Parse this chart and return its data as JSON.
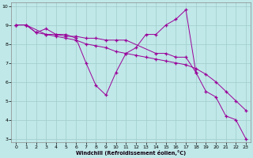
{
  "xlabel": "Windchill (Refroidissement éolien,°C)",
  "bg_color": "#c0e8e8",
  "line_color": "#990099",
  "grid_color": "#a0cccc",
  "xlim": [
    -0.5,
    23.5
  ],
  "ylim": [
    2.8,
    10.2
  ],
  "xticks": [
    0,
    1,
    2,
    3,
    4,
    5,
    6,
    7,
    8,
    9,
    10,
    11,
    12,
    13,
    14,
    15,
    16,
    17,
    18,
    19,
    20,
    21,
    22,
    23
  ],
  "yticks": [
    3,
    4,
    5,
    6,
    7,
    8,
    9,
    10
  ],
  "line1_x": [
    0,
    1,
    2,
    3,
    4,
    5,
    6,
    7,
    8,
    9,
    10,
    11,
    12,
    13,
    14,
    15,
    16,
    17,
    18,
    19,
    20,
    21,
    22,
    23
  ],
  "line1_y": [
    9.0,
    9.0,
    8.6,
    8.5,
    8.4,
    8.3,
    8.2,
    8.0,
    7.9,
    7.8,
    7.6,
    7.5,
    7.4,
    7.3,
    7.2,
    7.1,
    7.0,
    6.9,
    6.7,
    6.4,
    6.0,
    5.5,
    5.0,
    4.5
  ],
  "line2_x": [
    0,
    1,
    2,
    3,
    4,
    5,
    6,
    7,
    8,
    9,
    10,
    11,
    12,
    13,
    14,
    15,
    16,
    17,
    18,
    19,
    20,
    21,
    22,
    23
  ],
  "line2_y": [
    9.0,
    9.0,
    8.6,
    8.8,
    8.5,
    8.5,
    8.3,
    7.0,
    5.8,
    5.3,
    6.5,
    7.5,
    7.8,
    8.5,
    8.5,
    9.0,
    9.3,
    9.8,
    6.5,
    5.5,
    5.2,
    4.2,
    4.0,
    3.0
  ],
  "line3_x": [
    0,
    1,
    3,
    4,
    5,
    6,
    7,
    8,
    9,
    10,
    11,
    14,
    15,
    16,
    17,
    18
  ],
  "line3_y": [
    9.0,
    9.0,
    8.5,
    8.5,
    8.4,
    8.4,
    8.3,
    8.3,
    8.2,
    8.2,
    8.2,
    7.5,
    7.5,
    7.3,
    7.3,
    6.5
  ]
}
